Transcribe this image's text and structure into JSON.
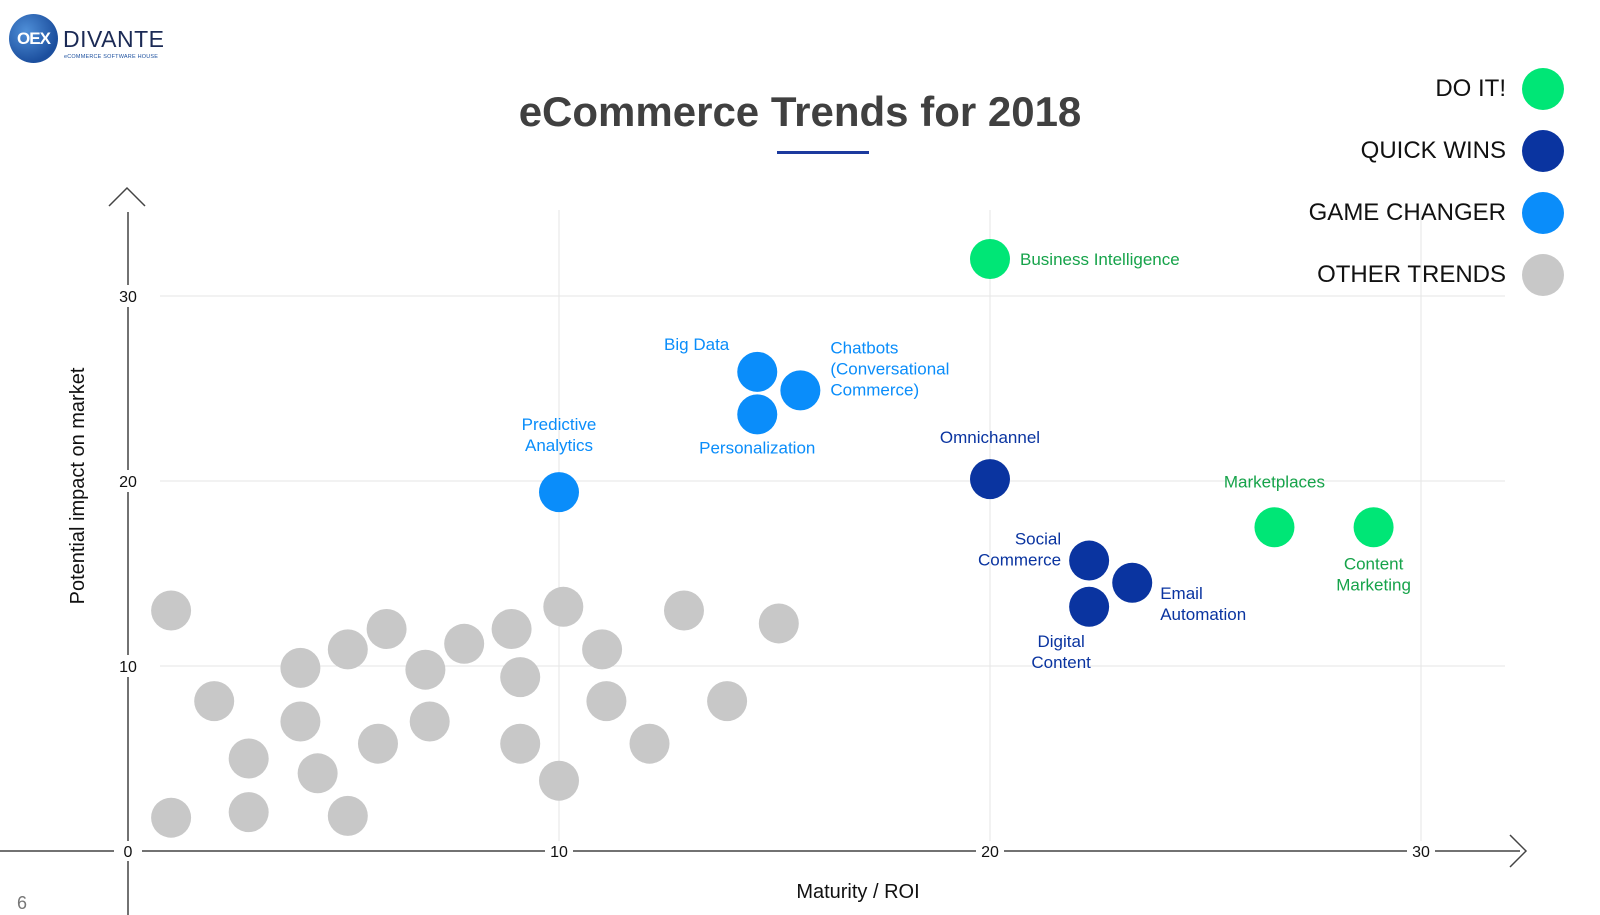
{
  "logo": {
    "mark": "OEX",
    "name": "DIVANTE",
    "tagline": "eCOMMERCE SOFTWARE HOUSE"
  },
  "page_number": "6",
  "colors": {
    "do_it": "#00e676",
    "quick_wins": "#0a34a0",
    "game_changer": "#0a8dfa",
    "other": "#c8c8c8",
    "accent": "#1c3a9e"
  },
  "legend": [
    {
      "label": "DO IT!",
      "color": "#00e676"
    },
    {
      "label": "QUICK WINS",
      "color": "#0a34a0"
    },
    {
      "label": "GAME CHANGER",
      "color": "#0a8dfa"
    },
    {
      "label": "OTHER TRENDS",
      "color": "#c8c8c8"
    }
  ],
  "chart_data": {
    "type": "scatter",
    "title": "eCommerce Trends for 2018",
    "xlabel": "Maturity / ROI",
    "ylabel": "Potential impact on market",
    "xlim": [
      0,
      33
    ],
    "ylim": [
      0,
      35
    ],
    "xticks": [
      0,
      10,
      20,
      30
    ],
    "yticks": [
      10,
      20,
      30
    ],
    "grid": true,
    "legend_position": "top-right",
    "series": [
      {
        "name": "DO IT!",
        "color": "#00e676",
        "points": [
          {
            "x": 20,
            "y": 32,
            "label": "Business Intelligence"
          },
          {
            "x": 26.6,
            "y": 17.5,
            "label": "Marketplaces"
          },
          {
            "x": 28.9,
            "y": 17.5,
            "label": "Content Marketing"
          }
        ]
      },
      {
        "name": "QUICK WINS",
        "color": "#0a34a0",
        "points": [
          {
            "x": 20,
            "y": 20.1,
            "label": "Omnichannel"
          },
          {
            "x": 22.3,
            "y": 15.7,
            "label": "Social Commerce"
          },
          {
            "x": 23.3,
            "y": 14.5,
            "label": "Email Automation"
          },
          {
            "x": 22.3,
            "y": 13.2,
            "label": "Digital Content"
          }
        ]
      },
      {
        "name": "GAME CHANGER",
        "color": "#0a8dfa",
        "points": [
          {
            "x": 10,
            "y": 19.4,
            "label": "Predictive Analytics"
          },
          {
            "x": 14.6,
            "y": 25.9,
            "label": "Big Data"
          },
          {
            "x": 15.6,
            "y": 24.9,
            "label": "Chatbots (Conversational Commerce)"
          },
          {
            "x": 14.6,
            "y": 23.6,
            "label": "Personalization"
          }
        ]
      },
      {
        "name": "OTHER TRENDS",
        "color": "#c8c8c8",
        "points": [
          {
            "x": 1.0,
            "y": 13.0
          },
          {
            "x": 2.0,
            "y": 8.1
          },
          {
            "x": 2.8,
            "y": 5.0
          },
          {
            "x": 2.8,
            "y": 2.1
          },
          {
            "x": 1.0,
            "y": 1.8
          },
          {
            "x": 4.0,
            "y": 9.9
          },
          {
            "x": 4.0,
            "y": 7.0
          },
          {
            "x": 4.4,
            "y": 4.2
          },
          {
            "x": 5.1,
            "y": 10.9
          },
          {
            "x": 5.1,
            "y": 1.9
          },
          {
            "x": 6.0,
            "y": 12.0
          },
          {
            "x": 5.8,
            "y": 5.8
          },
          {
            "x": 6.9,
            "y": 9.8
          },
          {
            "x": 7.0,
            "y": 7.0
          },
          {
            "x": 7.8,
            "y": 11.2
          },
          {
            "x": 8.9,
            "y": 12.0
          },
          {
            "x": 9.1,
            "y": 9.4
          },
          {
            "x": 9.1,
            "y": 5.8
          },
          {
            "x": 10.1,
            "y": 13.2
          },
          {
            "x": 10.0,
            "y": 3.8
          },
          {
            "x": 11.0,
            "y": 10.9
          },
          {
            "x": 11.1,
            "y": 8.1
          },
          {
            "x": 12.1,
            "y": 5.8
          },
          {
            "x": 12.9,
            "y": 13.0
          },
          {
            "x": 13.9,
            "y": 8.1
          },
          {
            "x": 15.1,
            "y": 12.3
          }
        ]
      }
    ]
  }
}
